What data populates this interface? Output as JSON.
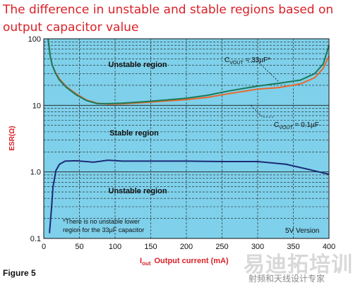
{
  "page": {
    "title": "The difference in unstable and stable regions based on output capacitor value",
    "figure_label": "Figure 5",
    "watermark": "易迪拓培训",
    "watermark_sub": "射频和天线设计专家"
  },
  "colors": {
    "title": "#d92027",
    "plot_bg": "#7fd0ea",
    "grid": "#1a1a1a",
    "series_33uF_orange": "#e8692b",
    "series_33uF_green": "#1a7a5a",
    "series_01uF": "#1a2a78"
  },
  "chart_data": {
    "type": "line",
    "title": "The difference in unstable and stable regions based on output capacitor value",
    "xlabel_prefix": "I",
    "xlabel_sub": "out",
    "xlabel_rest": "Output current (mA)",
    "ylabel": "ESR(Ω)",
    "xlim": [
      0,
      400
    ],
    "ylim": [
      0.1,
      100
    ],
    "yscale": "log",
    "grid": true,
    "x_ticks": [
      "0",
      "50",
      "100",
      "150",
      "200",
      "250",
      "300",
      "350",
      "400"
    ],
    "y_ticks": [
      "0.1",
      "1.0",
      "10",
      "100"
    ],
    "series": [
      {
        "name": "CVOUT = 33µF (orange)",
        "color": "#e8692b",
        "points": [
          [
            6,
            100
          ],
          [
            9,
            55
          ],
          [
            12,
            40
          ],
          [
            16,
            32
          ],
          [
            22,
            25
          ],
          [
            32,
            19
          ],
          [
            45,
            15
          ],
          [
            60,
            12
          ],
          [
            75,
            10.8
          ],
          [
            90,
            10.4
          ],
          [
            110,
            10.5
          ],
          [
            140,
            11
          ],
          [
            170,
            11.6
          ],
          [
            200,
            12.2
          ],
          [
            230,
            13.2
          ],
          [
            260,
            15
          ],
          [
            300,
            17.5
          ],
          [
            330,
            18.5
          ],
          [
            360,
            21
          ],
          [
            380,
            26
          ],
          [
            392,
            36
          ],
          [
            400,
            55
          ]
        ]
      },
      {
        "name": "CVOUT = 33µF (green)",
        "color": "#1a7a5a",
        "points": [
          [
            6,
            100
          ],
          [
            9,
            55
          ],
          [
            12,
            40
          ],
          [
            16,
            31
          ],
          [
            22,
            24
          ],
          [
            32,
            18.5
          ],
          [
            45,
            14.5
          ],
          [
            60,
            11.8
          ],
          [
            75,
            10.6
          ],
          [
            90,
            10.6
          ],
          [
            110,
            10.8
          ],
          [
            140,
            11.3
          ],
          [
            170,
            12
          ],
          [
            200,
            12.8
          ],
          [
            230,
            14.2
          ],
          [
            260,
            16.5
          ],
          [
            300,
            19.5
          ],
          [
            330,
            21.5
          ],
          [
            360,
            24
          ],
          [
            380,
            30
          ],
          [
            392,
            42
          ],
          [
            400,
            80
          ]
        ]
      },
      {
        "name": "CVOUT = 0.1µF",
        "color": "#1a2a78",
        "points": [
          [
            8,
            0.12
          ],
          [
            11,
            0.3
          ],
          [
            13,
            0.6
          ],
          [
            17,
            1.05
          ],
          [
            22,
            1.3
          ],
          [
            30,
            1.45
          ],
          [
            45,
            1.47
          ],
          [
            70,
            1.4
          ],
          [
            90,
            1.5
          ],
          [
            110,
            1.45
          ],
          [
            150,
            1.45
          ],
          [
            200,
            1.45
          ],
          [
            250,
            1.43
          ],
          [
            300,
            1.43
          ],
          [
            340,
            1.3
          ],
          [
            370,
            1.1
          ],
          [
            400,
            0.92
          ]
        ]
      }
    ],
    "annotations": {
      "unstable_top": "Unstable region",
      "stable": "Stable region",
      "unstable_bottom": "Unstable region",
      "cvout_33_prefix": "C",
      "cvout_33_sub": "VOUT",
      "cvout_33_rest": " = 33µF*",
      "cvout_01_prefix": "C",
      "cvout_01_sub": "VOUT",
      "cvout_01_rest": " = 0.1µF",
      "note_line1": "*There is no unstable lower",
      "note_line2": "region for the 33µF capacitor",
      "version": "5V Version"
    }
  }
}
